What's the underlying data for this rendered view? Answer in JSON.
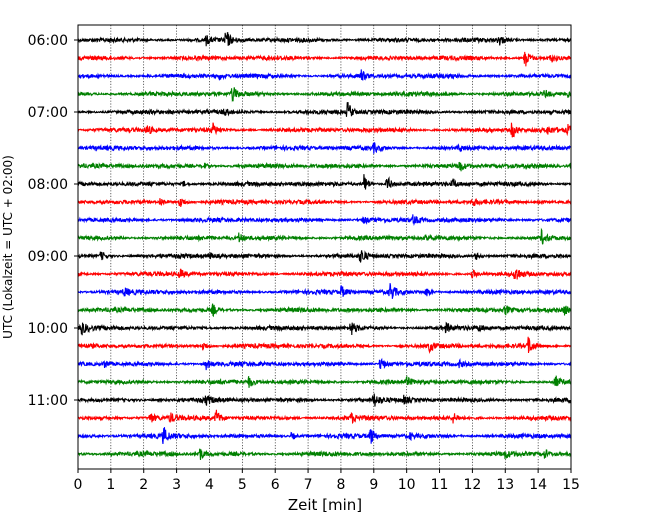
{
  "chart_data": {
    "type": "line",
    "title": "",
    "xlabel": "Zeit  [min]",
    "ylabel": "UTC (Lokalzeit = UTC + 02:00)",
    "xlim": [
      0,
      15
    ],
    "x_ticks": [
      0,
      1,
      2,
      3,
      4,
      5,
      6,
      7,
      8,
      9,
      10,
      11,
      12,
      13,
      14,
      15
    ],
    "x_tick_labels": [
      "0",
      "1",
      "2",
      "3",
      "4",
      "5",
      "6",
      "7",
      "8",
      "9",
      "10",
      "11",
      "12",
      "13",
      "14",
      "15"
    ],
    "y_tick_labels": [
      "06:00",
      "07:00",
      "08:00",
      "09:00",
      "10:00",
      "11:00"
    ],
    "vertical_grid": true,
    "trace_colors": [
      "#000000",
      "#ff0000",
      "#0000ff",
      "#008000"
    ],
    "traces": [
      {
        "start": "06:00",
        "events": [
          [
            4.5,
            1.0
          ],
          [
            3.9,
            0.45
          ],
          [
            12.8,
            0.55
          ]
        ]
      },
      {
        "start": "06:15",
        "events": [
          [
            13.6,
            1.0
          ],
          [
            14.4,
            0.35
          ]
        ]
      },
      {
        "start": "06:30",
        "events": [
          [
            8.6,
            0.6
          ],
          [
            4.3,
            0.3
          ]
        ]
      },
      {
        "start": "06:45",
        "events": [
          [
            4.7,
            0.8
          ],
          [
            14.2,
            0.4
          ],
          [
            14.9,
            0.3
          ]
        ]
      },
      {
        "start": "07:00",
        "events": [
          [
            8.2,
            1.0
          ],
          [
            4.4,
            0.35
          ]
        ]
      },
      {
        "start": "07:15",
        "events": [
          [
            2.1,
            0.5
          ],
          [
            4.1,
            0.6
          ],
          [
            13.2,
            0.9
          ],
          [
            14.3,
            0.4
          ],
          [
            14.9,
            0.4
          ]
        ]
      },
      {
        "start": "07:30",
        "events": [
          [
            9.0,
            0.45
          ],
          [
            11.6,
            0.3
          ]
        ]
      },
      {
        "start": "07:45",
        "events": [
          [
            3.8,
            0.4
          ],
          [
            11.6,
            0.6
          ],
          [
            15.0,
            0.4
          ]
        ]
      },
      {
        "start": "08:00",
        "events": [
          [
            8.7,
            1.0
          ],
          [
            9.4,
            0.9
          ],
          [
            11.4,
            0.45
          ],
          [
            3.2,
            0.3
          ]
        ]
      },
      {
        "start": "08:15",
        "events": [
          [
            2.5,
            0.5
          ],
          [
            3.1,
            0.7
          ],
          [
            12.0,
            0.4
          ],
          [
            14.0,
            0.35
          ]
        ]
      },
      {
        "start": "08:30",
        "events": [
          [
            10.2,
            0.5
          ],
          [
            8.7,
            0.35
          ]
        ]
      },
      {
        "start": "08:45",
        "events": [
          [
            4.9,
            0.5
          ],
          [
            14.1,
            0.7
          ],
          [
            10.6,
            0.3
          ]
        ]
      },
      {
        "start": "09:00",
        "events": [
          [
            0.7,
            0.5
          ],
          [
            8.6,
            0.8
          ],
          [
            12.1,
            0.4
          ],
          [
            4.0,
            0.3
          ]
        ]
      },
      {
        "start": "09:15",
        "events": [
          [
            3.1,
            0.5
          ],
          [
            12.0,
            0.45
          ],
          [
            13.3,
            0.9
          ]
        ]
      },
      {
        "start": "09:30",
        "events": [
          [
            1.4,
            0.4
          ],
          [
            8.0,
            0.6
          ],
          [
            9.5,
            1.0
          ],
          [
            10.6,
            0.5
          ]
        ]
      },
      {
        "start": "09:45",
        "events": [
          [
            4.1,
            0.55
          ],
          [
            13.0,
            0.45
          ],
          [
            14.8,
            0.4
          ]
        ]
      },
      {
        "start": "10:00",
        "events": [
          [
            0.1,
            0.7
          ],
          [
            8.3,
            0.8
          ],
          [
            11.2,
            0.45
          ],
          [
            12.2,
            0.3
          ]
        ]
      },
      {
        "start": "10:15",
        "events": [
          [
            3.8,
            0.5
          ],
          [
            10.7,
            0.55
          ],
          [
            13.7,
            0.9
          ]
        ]
      },
      {
        "start": "10:30",
        "events": [
          [
            0.8,
            0.4
          ],
          [
            3.9,
            0.5
          ],
          [
            9.2,
            0.8
          ],
          [
            11.6,
            0.35
          ]
        ]
      },
      {
        "start": "10:45",
        "events": [
          [
            5.2,
            0.5
          ],
          [
            10.0,
            0.35
          ],
          [
            14.5,
            0.8
          ]
        ]
      },
      {
        "start": "11:00",
        "events": [
          [
            3.9,
            0.45
          ],
          [
            9.0,
            0.7
          ],
          [
            9.9,
            0.4
          ],
          [
            15.0,
            0.4
          ]
        ]
      },
      {
        "start": "11:15",
        "events": [
          [
            2.2,
            0.6
          ],
          [
            2.8,
            0.5
          ],
          [
            4.2,
            0.85
          ],
          [
            8.3,
            0.5
          ],
          [
            11.4,
            0.5
          ]
        ]
      },
      {
        "start": "11:30",
        "events": [
          [
            2.6,
            0.85
          ],
          [
            6.5,
            0.4
          ],
          [
            8.9,
            0.85
          ],
          [
            10.1,
            0.3
          ]
        ]
      },
      {
        "start": "11:45",
        "events": [
          [
            3.7,
            0.7
          ],
          [
            13.0,
            0.35
          ],
          [
            14.2,
            0.45
          ]
        ]
      }
    ]
  }
}
